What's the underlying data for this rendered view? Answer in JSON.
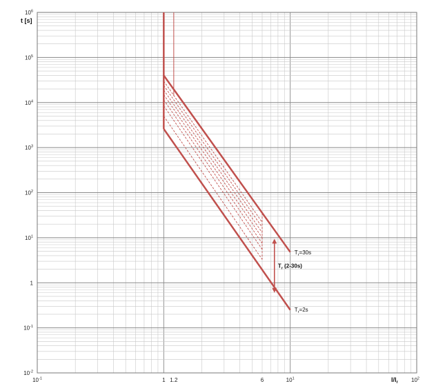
{
  "chart_data": {
    "type": "line",
    "title": "",
    "x_scale": "log",
    "y_scale": "log",
    "xlim": [
      0.1,
      100
    ],
    "ylim": [
      0.01,
      1000000
    ],
    "grid": true,
    "xlabel": {
      "main": "I/I",
      "sub": "r"
    },
    "ylabel": "t [s]",
    "x_ticks": [
      {
        "value": 0.1,
        "base": "10",
        "exp": "-1"
      },
      {
        "value": 1,
        "base": "1",
        "exp": ""
      },
      {
        "value": 1.2,
        "base": "1.2",
        "exp": ""
      },
      {
        "value": 6,
        "base": "6",
        "exp": ""
      },
      {
        "value": 10,
        "base": "10",
        "exp": "1"
      },
      {
        "value": 100,
        "base": "10",
        "exp": "2"
      }
    ],
    "y_ticks": [
      {
        "value": 0.01,
        "base": "10",
        "exp": "-2"
      },
      {
        "value": 0.1,
        "base": "10",
        "exp": "-1"
      },
      {
        "value": 1,
        "base": "1",
        "exp": ""
      },
      {
        "value": 10,
        "base": "10",
        "exp": "1"
      },
      {
        "value": 100,
        "base": "10",
        "exp": "2"
      },
      {
        "value": 1000,
        "base": "10",
        "exp": "3"
      },
      {
        "value": 10000,
        "base": "10",
        "exp": "4"
      },
      {
        "value": 100000,
        "base": "10",
        "exp": "5"
      },
      {
        "value": 1000000,
        "base": "10",
        "exp": "6"
      }
    ],
    "series": [
      {
        "style": "solid",
        "width": 2.5,
        "points": [
          [
            1,
            1000000
          ],
          [
            1,
            40000
          ],
          [
            10,
            4.8
          ]
        ]
      },
      {
        "style": "solid",
        "width": 2.5,
        "points": [
          [
            1,
            2600
          ],
          [
            10,
            0.25
          ]
        ]
      },
      {
        "style": "solid",
        "width": 2.5,
        "points": [
          [
            1,
            40000
          ],
          [
            1,
            2600
          ]
        ]
      },
      {
        "style": "solid",
        "width": 1,
        "points": [
          [
            1.2,
            1000000
          ],
          [
            1.2,
            14000
          ]
        ]
      },
      {
        "style": "dashed",
        "width": 0.9,
        "points": [
          [
            1,
            30000
          ],
          [
            6,
            22
          ]
        ]
      },
      {
        "style": "dashed",
        "width": 0.9,
        "points": [
          [
            1,
            24000
          ],
          [
            6,
            17
          ]
        ]
      },
      {
        "style": "dashed",
        "width": 0.9,
        "points": [
          [
            1,
            19000
          ],
          [
            6,
            13
          ]
        ]
      },
      {
        "style": "dashed",
        "width": 0.9,
        "points": [
          [
            1,
            15000
          ],
          [
            6,
            10
          ]
        ]
      },
      {
        "style": "dashed",
        "width": 0.9,
        "points": [
          [
            1,
            11500
          ],
          [
            6,
            7.5
          ]
        ]
      },
      {
        "style": "dashed",
        "width": 0.9,
        "points": [
          [
            1,
            8500
          ],
          [
            6,
            5.5
          ]
        ]
      },
      {
        "style": "dashed",
        "width": 0.9,
        "points": [
          [
            1,
            5000
          ],
          [
            6,
            3.3
          ]
        ]
      },
      {
        "style": "dashed",
        "width": 0.9,
        "points": [
          [
            6,
            35
          ],
          [
            6,
            3.3
          ]
        ]
      }
    ],
    "range_arrow": {
      "x": 7.5,
      "y_top": 9.5,
      "y_bottom": 0.6
    },
    "annotations": [
      {
        "id": "tr-30s",
        "main": "T",
        "sub": "r",
        "rest": "=30s",
        "x": 10.8,
        "y": 4.3,
        "bold": false
      },
      {
        "id": "tr-range",
        "main": "T",
        "sub": "r",
        "rest": " (2-30s)",
        "x": 8.0,
        "y": 2.15,
        "bold": true
      },
      {
        "id": "tr-2s",
        "main": "T",
        "sub": "r",
        "rest": "=2s",
        "x": 10.8,
        "y": 0.23,
        "bold": false
      }
    ],
    "colors": {
      "curve": "#c0504d",
      "grid": "#c8c8c8",
      "grid_major": "#888888",
      "text": "#222222"
    }
  }
}
